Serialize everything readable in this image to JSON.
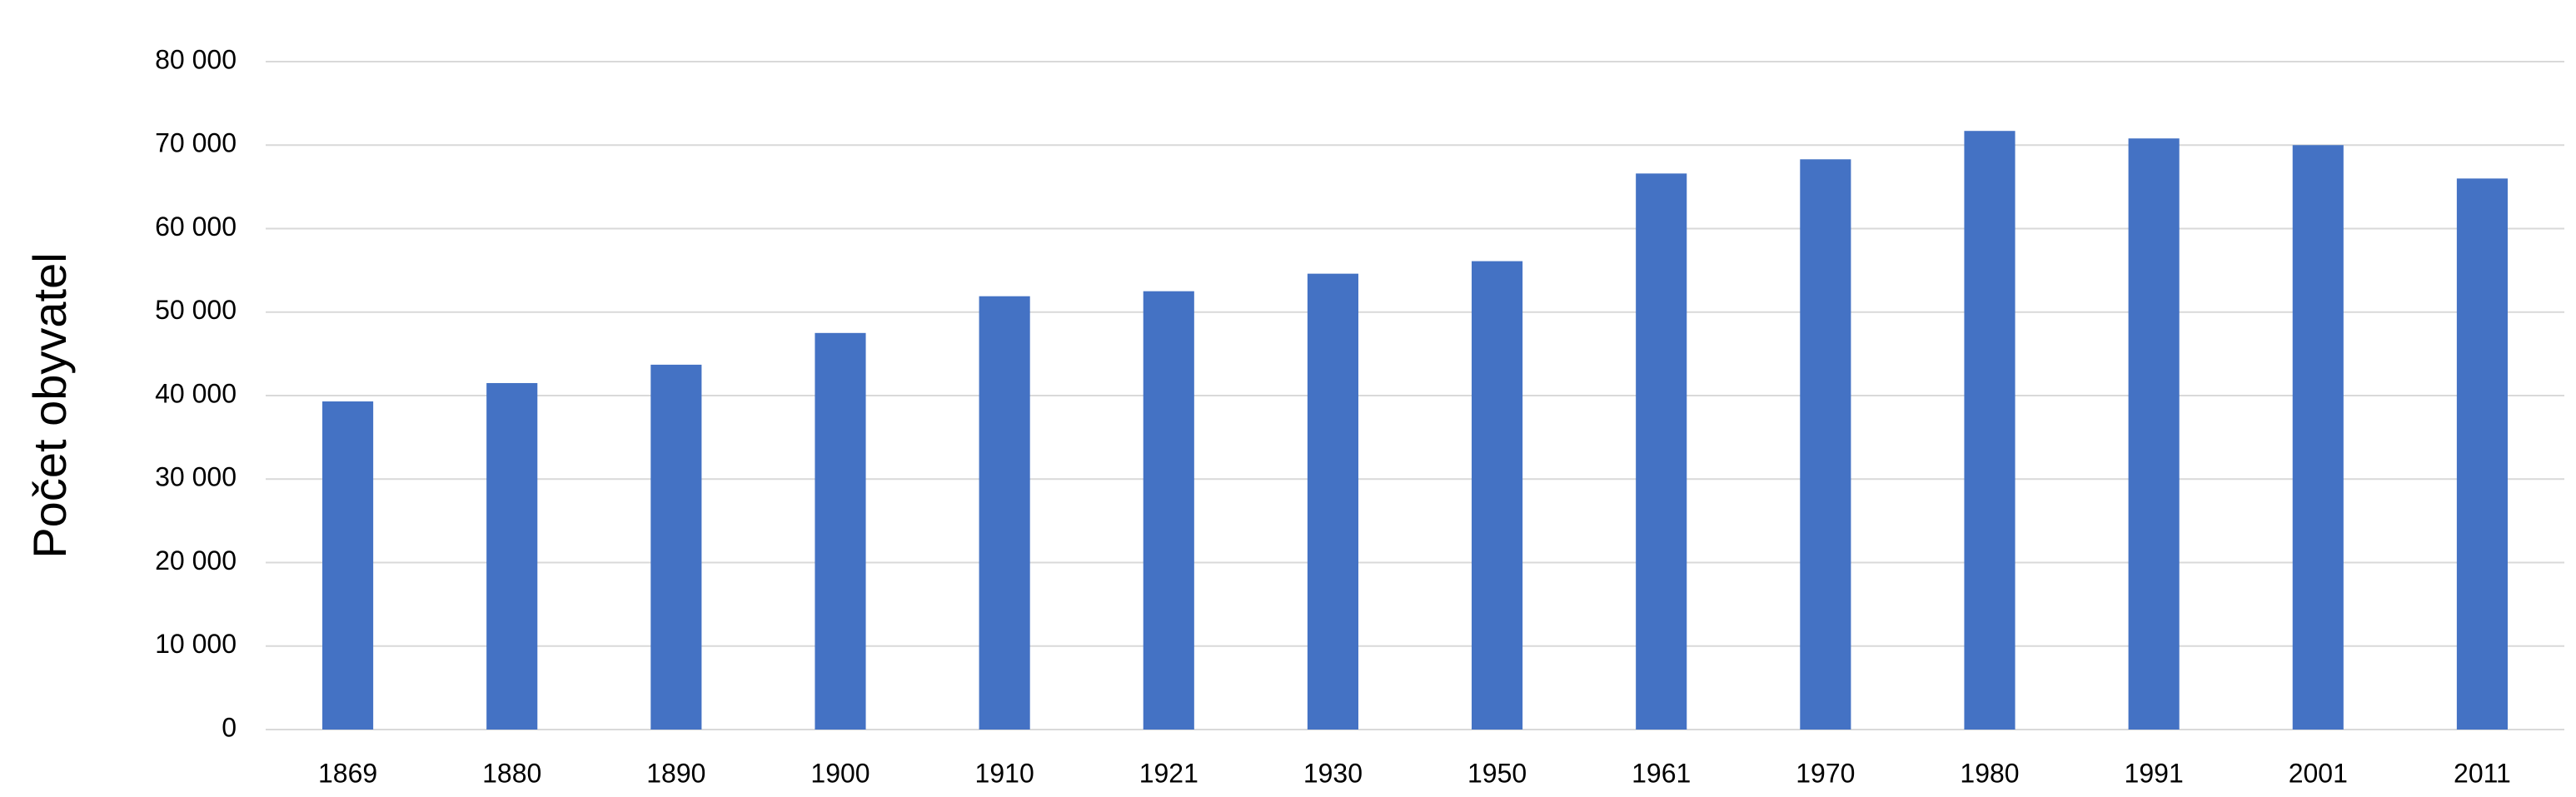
{
  "chart_data": {
    "type": "bar",
    "y_label": "Počet obyvatel",
    "categories": [
      "1869",
      "1880",
      "1890",
      "1900",
      "1910",
      "1921",
      "1930",
      "1950",
      "1961",
      "1970",
      "1980",
      "1991",
      "2001",
      "2011"
    ],
    "values": [
      39300,
      41500,
      43700,
      47500,
      51900,
      52500,
      54600,
      56100,
      66600,
      68300,
      71700,
      70800,
      70000,
      66000
    ],
    "color": "#4472c4",
    "ylim": [
      0,
      80000
    ],
    "yticks": [
      0,
      {
        "value": 10000,
        "label": "10 000"
      },
      {
        "value": 20000,
        "label": "20 000"
      },
      {
        "value": 30000,
        "label": "30 000"
      },
      {
        "value": 40000,
        "label": "40 000"
      },
      {
        "value": 50000,
        "label": "50 000"
      },
      {
        "value": 60000,
        "label": "60 000"
      },
      {
        "value": 70000,
        "label": "70 000"
      },
      {
        "value": 80000,
        "label": "80 000"
      }
    ],
    "grid": true
  }
}
